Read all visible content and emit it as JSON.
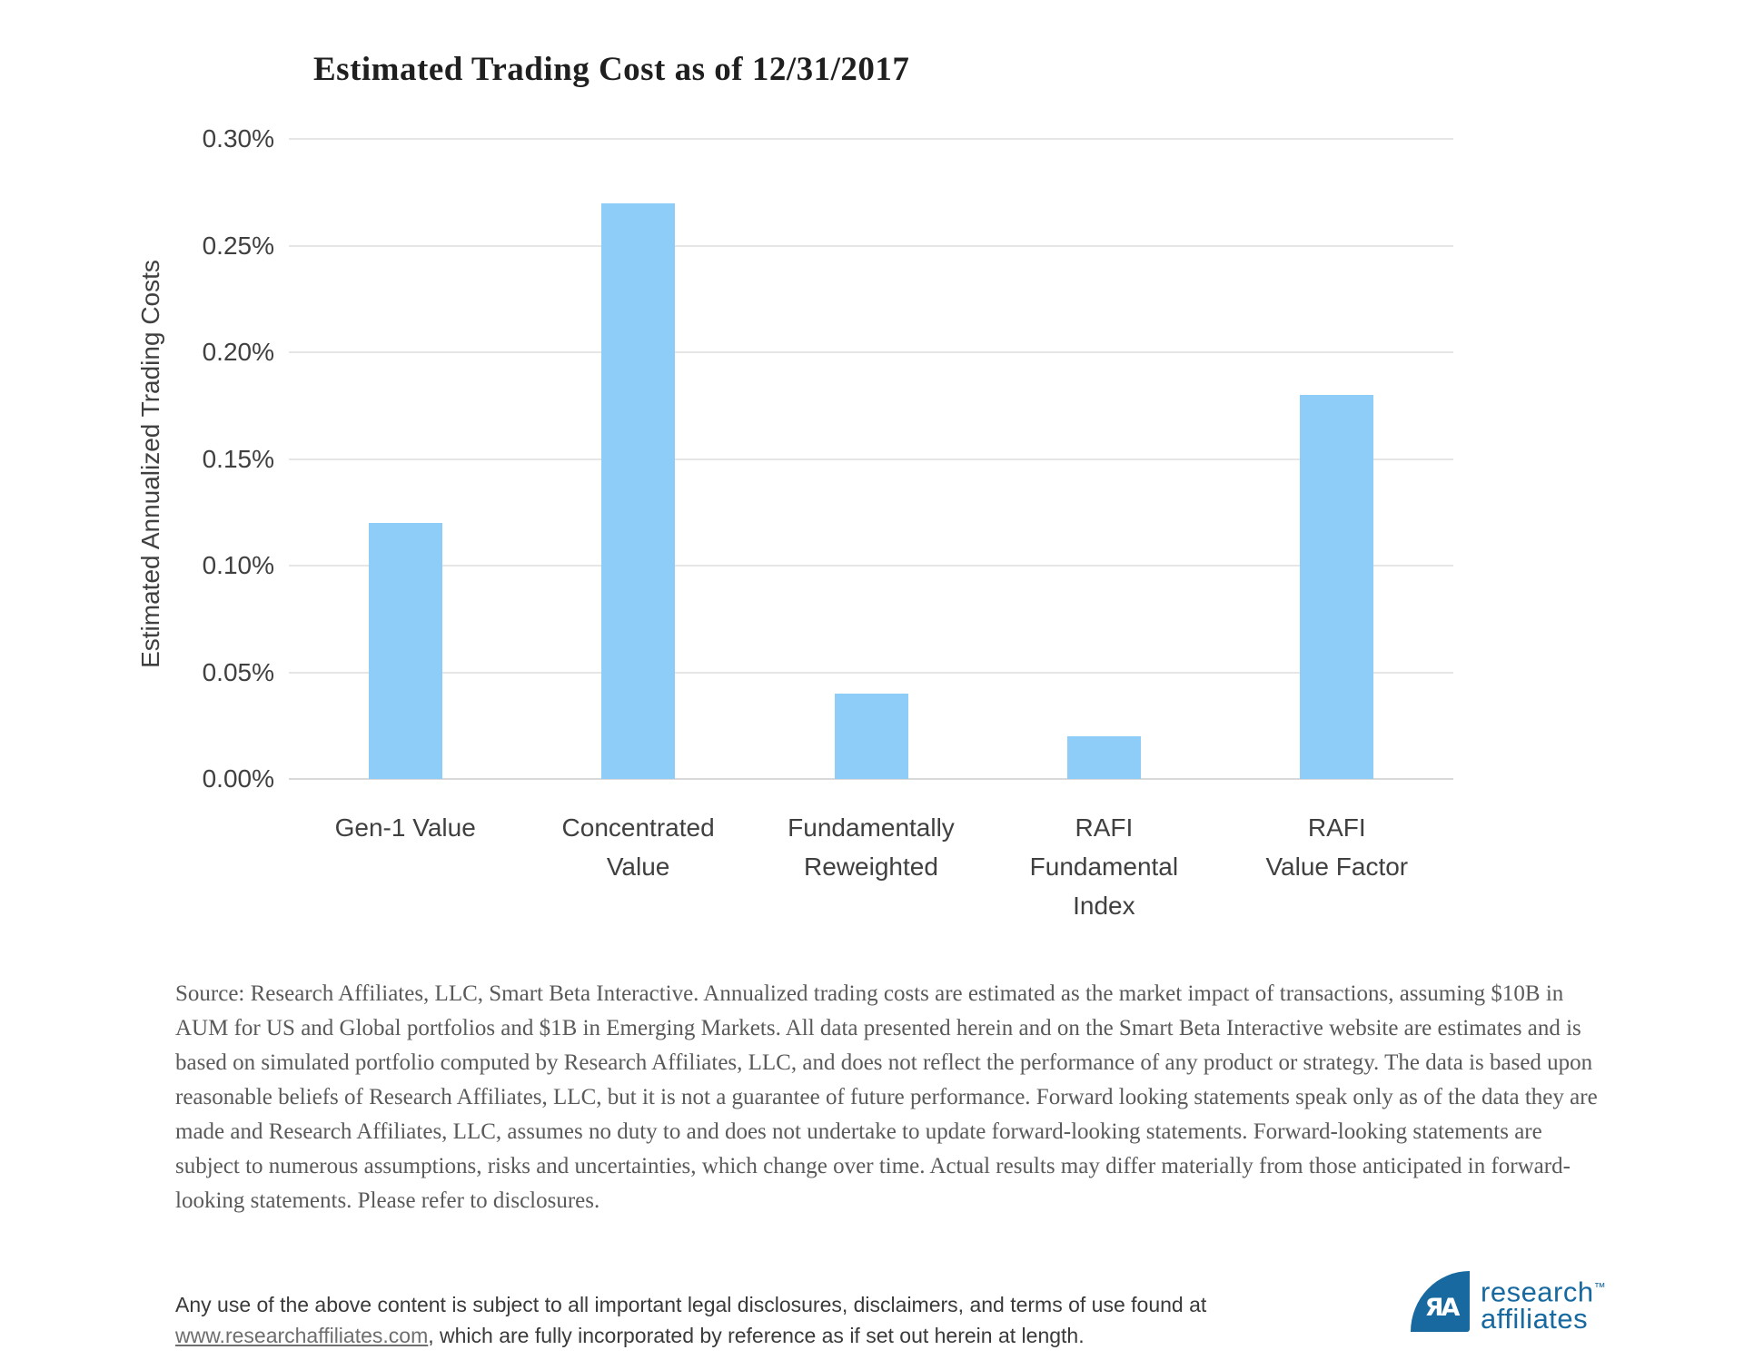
{
  "chart_data": {
    "type": "bar",
    "title": "Estimated Trading Cost as of 12/31/2017",
    "xlabel": "",
    "ylabel": "Estimated Annualized Trading Costs",
    "categories": [
      "Gen-1 Value",
      "Concentrated\nValue",
      "Fundamentally\nReweighted",
      "RAFI\nFundamental\nIndex",
      "RAFI\nValue Factor"
    ],
    "values": [
      0.12,
      0.27,
      0.04,
      0.02,
      0.18
    ],
    "unit": "%",
    "ylim": [
      0.0,
      0.3
    ],
    "ytick_step": 0.05,
    "ytick_labels": [
      "0.00%",
      "0.05%",
      "0.10%",
      "0.15%",
      "0.20%",
      "0.25%",
      "0.30%"
    ],
    "grid": true,
    "legend": "none",
    "bar_color": "#8ECDF8"
  },
  "colors": {
    "bar": "#8ECDF8",
    "gridline": "#E6E6E6",
    "baseline": "#D9D9D9",
    "axis_text": "#404040",
    "title_text": "#1F1F1F",
    "source_text": "#5A5A5A",
    "footer_text": "#3A3A3A",
    "brand_blue": "#17699F"
  },
  "source_note": "Source:  Research Affiliates, LLC, Smart Beta Interactive. Annualized trading costs are estimated as the market impact of transactions, assuming $10B in AUM for US and Global portfolios and $1B in Emerging Markets. All data presented herein and on the Smart Beta Interactive website are estimates and is based on simulated portfolio computed by Research Affiliates, LLC, and does not reflect the performance of any product or strategy.  The data is based upon reasonable beliefs of Research Affiliates, LLC, but it is not a guarantee of future performance.  Forward looking statements speak only as of the data they are made and Research Affiliates, LLC, assumes no duty to and does not undertake to update forward-looking statements. Forward-looking statements are subject to numerous assumptions, risks and uncertainties, which change over time. Actual results may differ materially from those anticipated in forward-looking statements. Please refer to disclosures.",
  "footer": {
    "text_before_link": "Any use of the above content is subject to all important legal disclosures, disclaimers, and terms of use found at ",
    "link_text": "www.researchaffiliates.com",
    "text_after_link": ", which are fully incorporated by reference as if set out herein at length."
  },
  "logo": {
    "monogram": "ЯA",
    "line1": "research",
    "tm": "™",
    "line2": "affiliates"
  }
}
